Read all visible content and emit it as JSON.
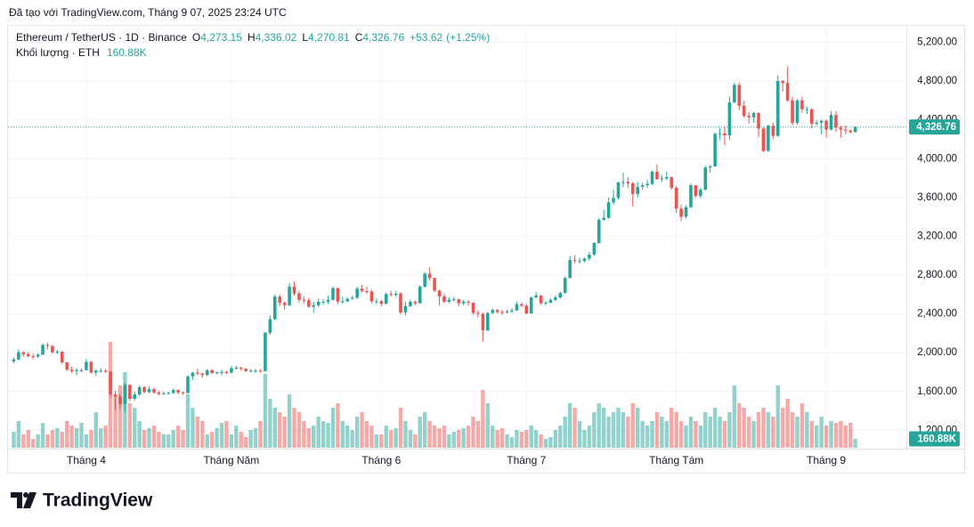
{
  "chart_data": {
    "type": "candlestick",
    "title": "Đã tạo với TradingView.com, Tháng 9 07, 2025 23:24 UTC",
    "symbol": "Ethereum / TetherUS · 1D · Binance",
    "legend_values": [
      {
        "key": "O",
        "value": 4273.15,
        "label": "4,273.15"
      },
      {
        "key": "H",
        "value": 4336.02,
        "label": "4,336.02"
      },
      {
        "key": "L",
        "value": 4270.81,
        "label": "4,270.81"
      },
      {
        "key": "C",
        "value": 4326.76,
        "label": "4,326.76"
      }
    ],
    "change": {
      "value": 53.62,
      "label": "+53.62"
    },
    "change_pct": {
      "value": 1.25,
      "label": "(+1.25%)"
    },
    "volume_title": "Khối lượng · ETH",
    "volume_last": {
      "value": 160880,
      "label": "160.88K"
    },
    "last_price": {
      "value": 4326.76,
      "label": "4,326.76"
    },
    "brand": "TradingView",
    "up_color": "#26a69a",
    "down_color": "#ef5350",
    "grid": true,
    "xlim": [
      -1,
      184
    ],
    "xticks": [
      {
        "value": 15,
        "label": "Tháng 4"
      },
      {
        "value": 45,
        "label": "Tháng Năm"
      },
      {
        "value": 76,
        "label": "Tháng 6"
      },
      {
        "value": 106,
        "label": "Tháng 7"
      },
      {
        "value": 137,
        "label": "Tháng Tám"
      },
      {
        "value": 168,
        "label": "Tháng 9"
      }
    ],
    "ylim": [
      1020,
      5360
    ],
    "yticks": [
      {
        "value": 1200,
        "label": "1,200.00"
      },
      {
        "value": 1600,
        "label": "1,600.00"
      },
      {
        "value": 2000,
        "label": "2,000.00"
      },
      {
        "value": 2400,
        "label": "2,400.00"
      },
      {
        "value": 2800,
        "label": "2,800.00"
      },
      {
        "value": 3200,
        "label": "3,200.00"
      },
      {
        "value": 3600,
        "label": "3,600.00"
      },
      {
        "value": 4000,
        "label": "4,000.00"
      },
      {
        "value": 4400,
        "label": "4,400.00"
      },
      {
        "value": 4800,
        "label": "4,800.00"
      },
      {
        "value": 5200,
        "label": "5,200.00"
      }
    ],
    "open": [
      1910,
      1930,
      2005,
      1985,
      1965,
      1960,
      1980,
      2080,
      2070,
      2005,
      2010,
      1900,
      1825,
      1810,
      1820,
      1820,
      1905,
      1795,
      1815,
      1815,
      1805,
      1570,
      1550,
      1470,
      1670,
      1525,
      1570,
      1645,
      1595,
      1625,
      1590,
      1575,
      1580,
      1585,
      1615,
      1590,
      1585,
      1755,
      1795,
      1785,
      1770,
      1820,
      1790,
      1800,
      1800,
      1795,
      1840,
      1845,
      1835,
      1810,
      1815,
      1815,
      1810,
      2205,
      2345,
      2580,
      2515,
      2490,
      2680,
      2610,
      2545,
      2540,
      2475,
      2490,
      2525,
      2525,
      2545,
      2665,
      2525,
      2530,
      2555,
      2565,
      2660,
      2635,
      2630,
      2530,
      2530,
      2505,
      2605,
      2595,
      2610,
      2415,
      2480,
      2525,
      2510,
      2680,
      2815,
      2770,
      2640,
      2580,
      2525,
      2545,
      2550,
      2510,
      2525,
      2515,
      2410,
      2400,
      2230,
      2410,
      2440,
      2420,
      2415,
      2425,
      2435,
      2500,
      2485,
      2405,
      2570,
      2590,
      2510,
      2515,
      2545,
      2570,
      2615,
      2770,
      2955,
      2945,
      2945,
      2970,
      3010,
      3130,
      3370,
      3390,
      3550,
      3595,
      3755,
      3760,
      3745,
      3635,
      3710,
      3725,
      3740,
      3865,
      3790,
      3795,
      3810,
      3700,
      3485,
      3400,
      3500,
      3725,
      3615,
      3680,
      3910,
      3920,
      4255,
      4260,
      4240,
      4580,
      4760,
      4545,
      4440,
      4425,
      4470,
      4310,
      4080,
      4340,
      4235,
      4800,
      4780,
      4600,
      4370,
      4600,
      4510,
      4510,
      4360,
      4370,
      4390,
      4300,
      4450,
      4320,
      4300,
      4290,
      4273.15
    ],
    "high": [
      1950,
      2035,
      2015,
      2010,
      1990,
      1995,
      2095,
      2105,
      2075,
      2030,
      2015,
      1905,
      1855,
      1840,
      1835,
      1935,
      1915,
      1830,
      1840,
      1830,
      1810,
      1610,
      1580,
      1690,
      1670,
      1600,
      1660,
      1660,
      1655,
      1640,
      1610,
      1600,
      1600,
      1630,
      1620,
      1600,
      1770,
      1800,
      1835,
      1790,
      1830,
      1830,
      1805,
      1825,
      1815,
      1860,
      1865,
      1855,
      1840,
      1830,
      1830,
      1830,
      2215,
      2385,
      2600,
      2600,
      2525,
      2720,
      2735,
      2640,
      2580,
      2565,
      2525,
      2560,
      2555,
      2590,
      2680,
      2670,
      2580,
      2570,
      2590,
      2680,
      2700,
      2680,
      2650,
      2560,
      2545,
      2620,
      2640,
      2635,
      2625,
      2525,
      2540,
      2540,
      2695,
      2830,
      2880,
      2775,
      2650,
      2610,
      2570,
      2575,
      2560,
      2545,
      2540,
      2520,
      2435,
      2415,
      2420,
      2455,
      2450,
      2440,
      2445,
      2460,
      2525,
      2520,
      2505,
      2580,
      2625,
      2595,
      2530,
      2560,
      2590,
      2630,
      2785,
      2995,
      3005,
      2980,
      2980,
      3040,
      3140,
      3385,
      3475,
      3600,
      3680,
      3760,
      3855,
      3810,
      3760,
      3760,
      3750,
      3780,
      3880,
      3940,
      3830,
      3870,
      3815,
      3720,
      3525,
      3520,
      3745,
      3730,
      3700,
      3925,
      3935,
      4270,
      4320,
      4330,
      4640,
      4785,
      4785,
      4595,
      4480,
      4480,
      4480,
      4325,
      4350,
      4370,
      4860,
      4810,
      4950,
      4635,
      4615,
      4640,
      4540,
      4520,
      4400,
      4400,
      4405,
      4490,
      4490,
      4340,
      4345,
      4300,
      4336.02
    ],
    "low": [
      1890,
      1920,
      1960,
      1950,
      1930,
      1945,
      1975,
      2035,
      1990,
      1985,
      1880,
      1810,
      1790,
      1770,
      1800,
      1815,
      1785,
      1760,
      1795,
      1790,
      1545,
      1410,
      1420,
      1385,
      1500,
      1505,
      1555,
      1580,
      1580,
      1575,
      1560,
      1565,
      1570,
      1575,
      1570,
      1565,
      1575,
      1720,
      1765,
      1745,
      1760,
      1780,
      1775,
      1770,
      1780,
      1785,
      1825,
      1815,
      1800,
      1795,
      1790,
      1795,
      1805,
      2185,
      2335,
      2480,
      2440,
      2480,
      2590,
      2515,
      2510,
      2460,
      2410,
      2470,
      2495,
      2500,
      2540,
      2500,
      2505,
      2520,
      2545,
      2555,
      2620,
      2605,
      2510,
      2500,
      2480,
      2495,
      2580,
      2580,
      2395,
      2385,
      2470,
      2490,
      2505,
      2670,
      2745,
      2620,
      2490,
      2510,
      2510,
      2530,
      2480,
      2490,
      2490,
      2390,
      2365,
      2115,
      2225,
      2395,
      2405,
      2390,
      2405,
      2410,
      2430,
      2470,
      2395,
      2400,
      2560,
      2495,
      2490,
      2510,
      2530,
      2560,
      2610,
      2765,
      2920,
      2920,
      2930,
      2950,
      3000,
      3125,
      3360,
      3380,
      3525,
      3580,
      3705,
      3700,
      3510,
      3600,
      3680,
      3700,
      3730,
      3780,
      3760,
      3780,
      3680,
      3440,
      3355,
      3380,
      3490,
      3600,
      3595,
      3670,
      3855,
      3915,
      4195,
      4140,
      4190,
      4570,
      4500,
      4425,
      4365,
      4370,
      4220,
      4065,
      4070,
      4200,
      4225,
      4690,
      4585,
      4340,
      4350,
      4475,
      4460,
      4310,
      4340,
      4250,
      4215,
      4290,
      4280,
      4215,
      4250,
      4260,
      4270.81
    ],
    "close": [
      1930,
      2005,
      1985,
      1965,
      1960,
      1980,
      2080,
      2070,
      2005,
      2010,
      1900,
      1825,
      1810,
      1820,
      1820,
      1905,
      1795,
      1815,
      1815,
      1805,
      1570,
      1550,
      1470,
      1670,
      1525,
      1570,
      1645,
      1595,
      1625,
      1590,
      1575,
      1580,
      1585,
      1615,
      1590,
      1585,
      1755,
      1795,
      1785,
      1770,
      1820,
      1790,
      1800,
      1800,
      1795,
      1840,
      1845,
      1835,
      1810,
      1815,
      1815,
      1810,
      2205,
      2345,
      2580,
      2515,
      2490,
      2680,
      2610,
      2545,
      2540,
      2475,
      2490,
      2525,
      2525,
      2545,
      2665,
      2525,
      2530,
      2555,
      2565,
      2660,
      2635,
      2630,
      2530,
      2530,
      2505,
      2605,
      2595,
      2610,
      2415,
      2480,
      2525,
      2510,
      2680,
      2815,
      2770,
      2640,
      2580,
      2525,
      2545,
      2550,
      2510,
      2525,
      2515,
      2410,
      2400,
      2230,
      2410,
      2440,
      2420,
      2415,
      2425,
      2435,
      2500,
      2485,
      2405,
      2570,
      2590,
      2510,
      2515,
      2545,
      2570,
      2615,
      2770,
      2955,
      2945,
      2945,
      2970,
      3010,
      3130,
      3370,
      3390,
      3550,
      3595,
      3755,
      3760,
      3745,
      3635,
      3710,
      3725,
      3740,
      3865,
      3790,
      3795,
      3810,
      3700,
      3485,
      3400,
      3500,
      3725,
      3615,
      3680,
      3910,
      3920,
      4255,
      4260,
      4240,
      4580,
      4760,
      4545,
      4440,
      4425,
      4470,
      4310,
      4080,
      4340,
      4235,
      4800,
      4780,
      4600,
      4370,
      4600,
      4510,
      4510,
      4360,
      4370,
      4390,
      4300,
      4450,
      4320,
      4300,
      4290,
      4273.15,
      4326.76
    ],
    "volume": [
      288000,
      480000,
      240000,
      320000,
      160000,
      240000,
      448000,
      240000,
      320000,
      352000,
      288000,
      480000,
      400000,
      352000,
      448000,
      240000,
      320000,
      640000,
      352000,
      400000,
      1904000,
      960000,
      1120000,
      1360000,
      800000,
      720000,
      480000,
      320000,
      352000,
      400000,
      288000,
      240000,
      240000,
      320000,
      400000,
      320000,
      960000,
      720000,
      560000,
      480000,
      240000,
      288000,
      352000,
      448000,
      480000,
      240000,
      400000,
      288000,
      192000,
      320000,
      352000,
      480000,
      1328000,
      880000,
      720000,
      640000,
      560000,
      960000,
      720000,
      640000,
      480000,
      352000,
      400000,
      560000,
      480000,
      448000,
      720000,
      800000,
      480000,
      400000,
      320000,
      560000,
      640000,
      480000,
      400000,
      240000,
      240000,
      400000,
      320000,
      352000,
      720000,
      480000,
      320000,
      240000,
      560000,
      640000,
      480000,
      400000,
      352000,
      400000,
      240000,
      288000,
      320000,
      352000,
      400000,
      560000,
      480000,
      1040000,
      800000,
      400000,
      320000,
      352000,
      240000,
      192000,
      320000,
      288000,
      320000,
      400000,
      320000,
      240000,
      160000,
      192000,
      320000,
      400000,
      560000,
      800000,
      720000,
      480000,
      320000,
      400000,
      640000,
      800000,
      720000,
      560000,
      640000,
      720000,
      640000,
      560000,
      800000,
      720000,
      480000,
      400000,
      480000,
      640000,
      560000,
      480000,
      720000,
      640000,
      480000,
      400000,
      560000,
      480000,
      400000,
      640000,
      560000,
      720000,
      560000,
      480000,
      640000,
      1120000,
      800000,
      720000,
      560000,
      480000,
      640000,
      720000,
      640000,
      560000,
      1120000,
      720000,
      880000,
      640000,
      560000,
      800000,
      640000,
      480000,
      400000,
      560000,
      400000,
      480000,
      448000,
      480000,
      400000,
      448000,
      160880
    ]
  }
}
